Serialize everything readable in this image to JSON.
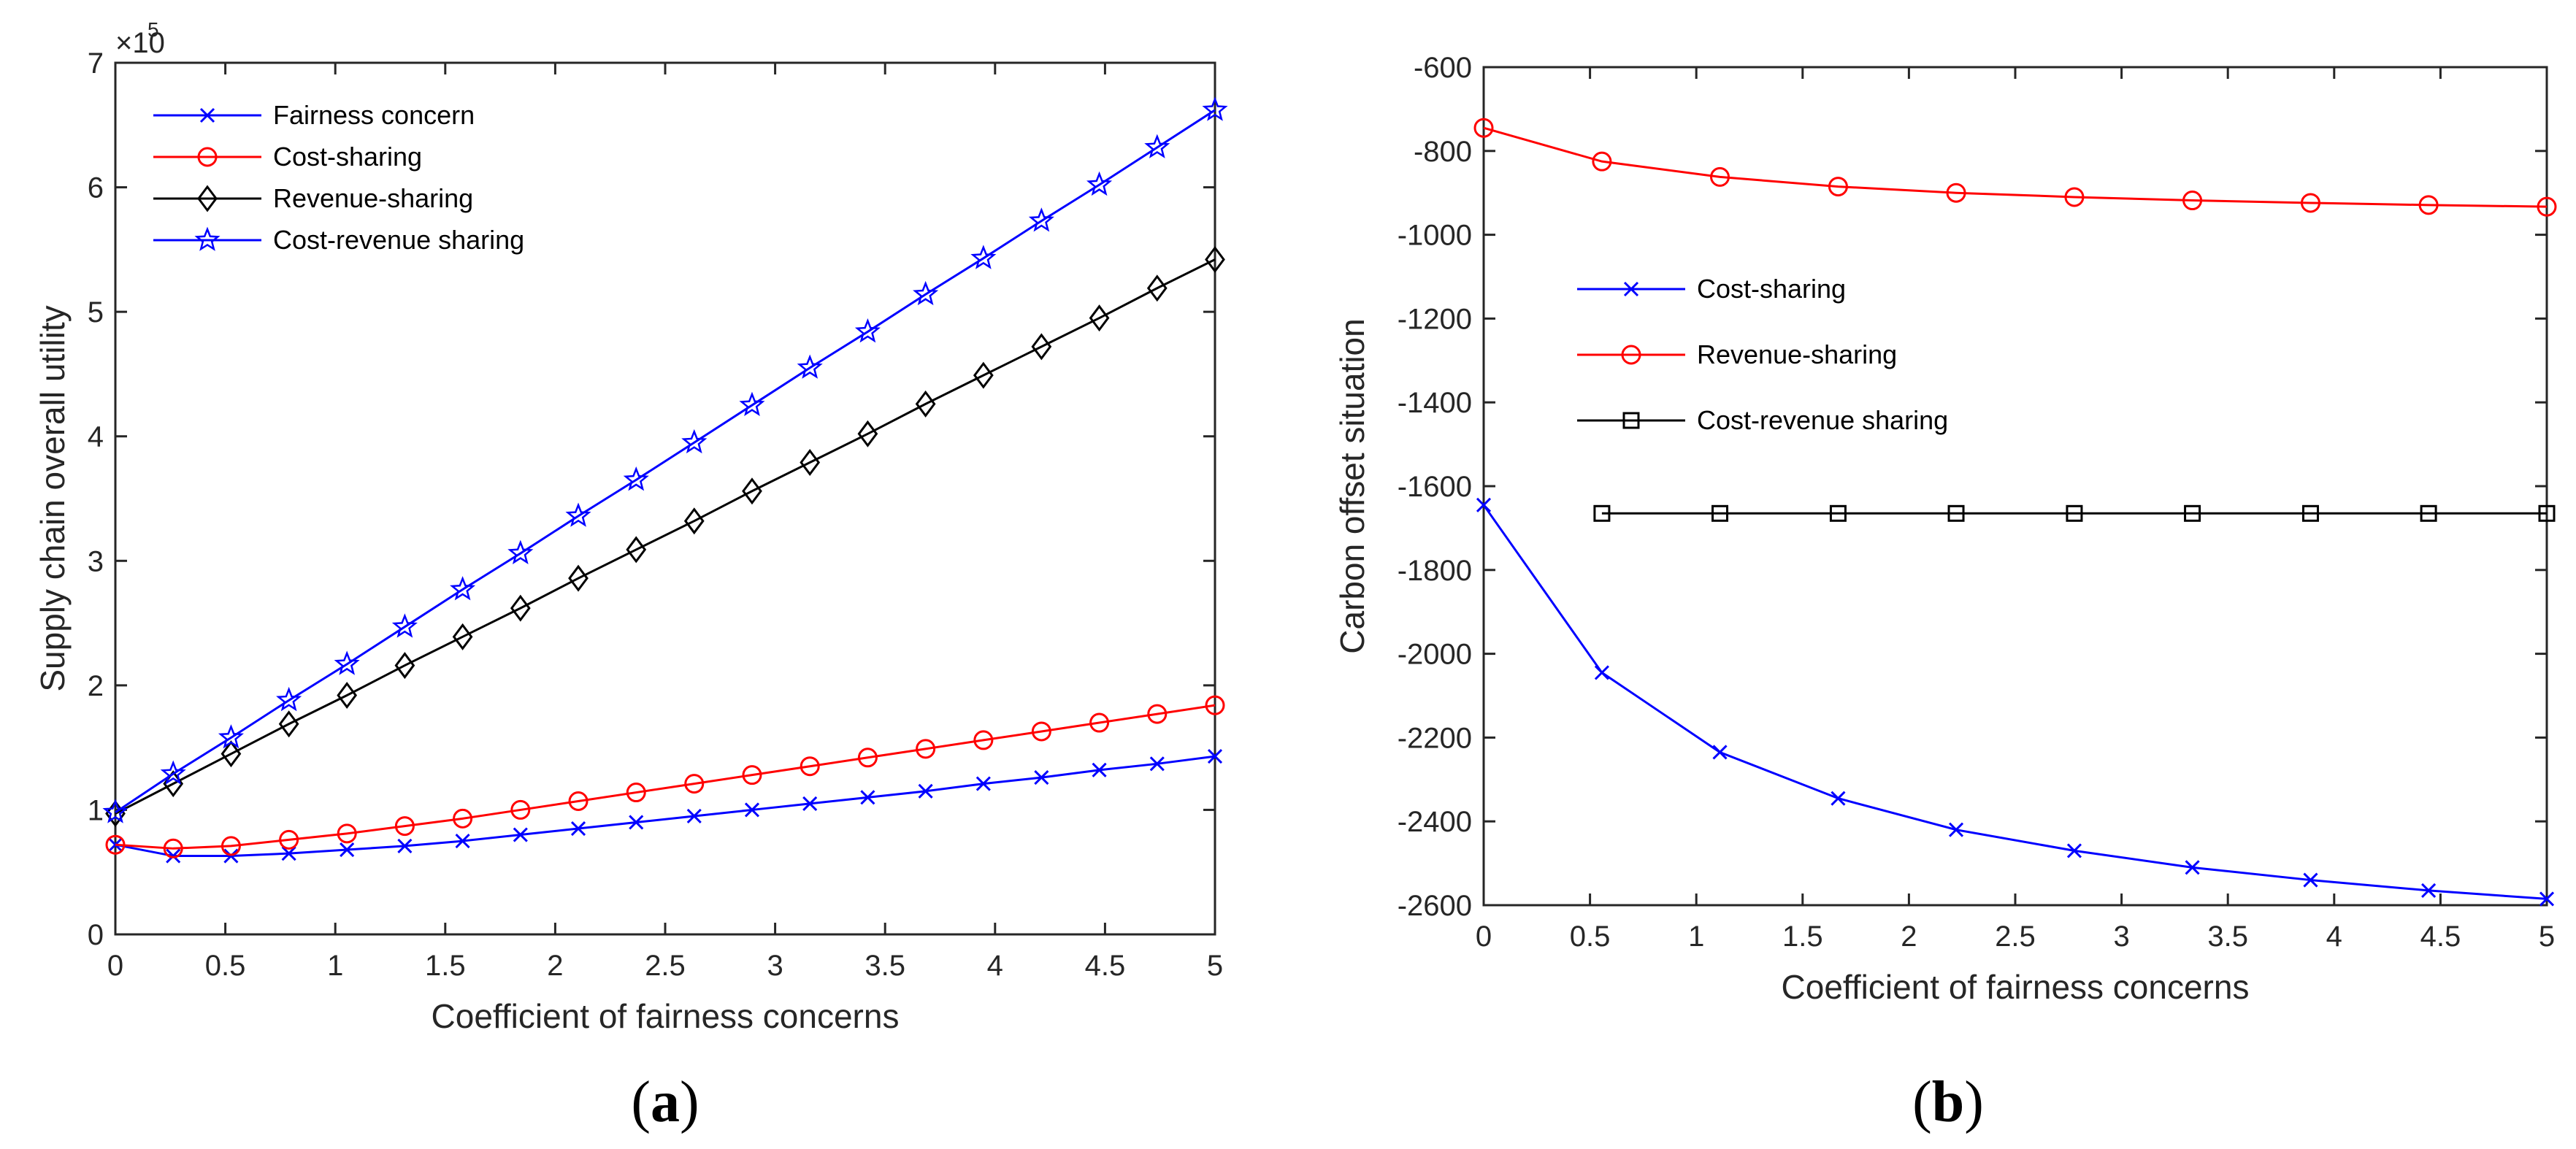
{
  "chart_data": [
    {
      "type": "line",
      "panel_label": "a",
      "xlabel": "Coefficient of fairness concerns",
      "ylabel": "Supply chain overall utility",
      "y_multiplier_text": "×10",
      "y_multiplier_exp": "5",
      "xlim": [
        0,
        5
      ],
      "ylim": [
        0,
        7
      ],
      "xticks": [
        0,
        0.5,
        1,
        1.5,
        2,
        2.5,
        3,
        3.5,
        4,
        4.5,
        5
      ],
      "xtick_labels": [
        "0",
        "0.5",
        "1",
        "1.5",
        "2",
        "2.5",
        "3",
        "3.5",
        "4",
        "4.5",
        "5"
      ],
      "yticks": [
        0,
        1,
        2,
        3,
        4,
        5,
        6,
        7
      ],
      "ytick_labels": [
        "0",
        "1",
        "2",
        "3",
        "4",
        "5",
        "6",
        "7"
      ],
      "legend_position": "top-left",
      "x": [
        0,
        0.263,
        0.526,
        0.789,
        1.053,
        1.316,
        1.579,
        1.842,
        2.105,
        2.368,
        2.632,
        2.895,
        3.158,
        3.421,
        3.684,
        3.947,
        4.211,
        4.474,
        4.737,
        5.0
      ],
      "series": [
        {
          "name": "Fairness concern",
          "color": "#0000ff",
          "marker": "x",
          "values": [
            0.72,
            0.63,
            0.63,
            0.65,
            0.68,
            0.71,
            0.75,
            0.8,
            0.85,
            0.9,
            0.95,
            1.0,
            1.05,
            1.1,
            1.15,
            1.21,
            1.26,
            1.32,
            1.37,
            1.43
          ]
        },
        {
          "name": "Cost-sharing",
          "color": "#ff0000",
          "marker": "o",
          "values": [
            0.72,
            0.69,
            0.71,
            0.76,
            0.81,
            0.87,
            0.93,
            1.0,
            1.07,
            1.14,
            1.21,
            1.28,
            1.35,
            1.42,
            1.49,
            1.56,
            1.63,
            1.7,
            1.77,
            1.84
          ]
        },
        {
          "name": "Revenue-sharing",
          "color": "#000000",
          "marker": "d",
          "values": [
            0.97,
            1.21,
            1.45,
            1.69,
            1.92,
            2.16,
            2.39,
            2.62,
            2.86,
            3.09,
            3.32,
            3.56,
            3.79,
            4.02,
            4.26,
            4.49,
            4.72,
            4.95,
            5.19,
            5.42
          ]
        },
        {
          "name": "Cost-revenue sharing",
          "color": "#0000ff",
          "marker": "star",
          "values": [
            0.98,
            1.29,
            1.58,
            1.88,
            2.17,
            2.47,
            2.77,
            3.06,
            3.36,
            3.65,
            3.95,
            4.25,
            4.55,
            4.84,
            5.14,
            5.43,
            5.73,
            6.02,
            6.32,
            6.62
          ]
        }
      ]
    },
    {
      "type": "line",
      "panel_label": "b",
      "xlabel": "Coefficient of fairness concerns",
      "ylabel": "Carbon offset situation",
      "xlim": [
        0,
        5
      ],
      "ylim": [
        -2600,
        -600
      ],
      "xticks": [
        0,
        0.5,
        1,
        1.5,
        2,
        2.5,
        3,
        3.5,
        4,
        4.5,
        5
      ],
      "xtick_labels": [
        "0",
        "0.5",
        "1",
        "1.5",
        "2",
        "2.5",
        "3",
        "3.5",
        "4",
        "4.5",
        "5"
      ],
      "yticks": [
        -2600,
        -2400,
        -2200,
        -2000,
        -1800,
        -1600,
        -1400,
        -1200,
        -1000,
        -800,
        -600
      ],
      "ytick_labels": [
        "-2600",
        "-2400",
        "-2200",
        "-2000",
        "-1800",
        "-1600",
        "-1400",
        "-1200",
        "-1000",
        "-800",
        "-600"
      ],
      "legend_position": "center-left",
      "series": [
        {
          "name": "Cost-sharing",
          "color": "#0000ff",
          "marker": "x",
          "x": [
            0,
            0.556,
            1.111,
            1.667,
            2.222,
            2.778,
            3.333,
            3.889,
            4.444,
            5.0
          ],
          "values": [
            -1645,
            -2045,
            -2235,
            -2345,
            -2420,
            -2470,
            -2510,
            -2540,
            -2565,
            -2585
          ]
        },
        {
          "name": "Revenue-sharing",
          "color": "#ff0000",
          "marker": "o",
          "x": [
            0,
            0.556,
            1.111,
            1.667,
            2.222,
            2.778,
            3.333,
            3.889,
            4.444,
            5.0
          ],
          "values": [
            -745,
            -825,
            -862,
            -885,
            -900,
            -910,
            -918,
            -924,
            -929,
            -933
          ]
        },
        {
          "name": "Cost-revenue sharing",
          "color": "#000000",
          "marker": "s",
          "x": [
            0.556,
            1.111,
            1.667,
            2.222,
            2.778,
            3.333,
            3.889,
            4.444,
            5.0
          ],
          "values": [
            -1665,
            -1665,
            -1665,
            -1665,
            -1665,
            -1665,
            -1665,
            -1665,
            -1665
          ]
        }
      ]
    }
  ]
}
